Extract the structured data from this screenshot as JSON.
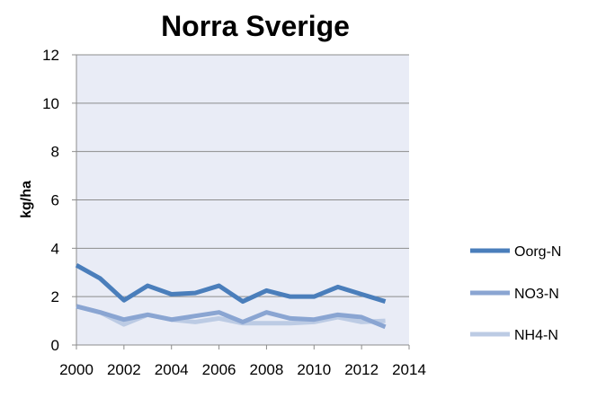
{
  "chart_data": {
    "type": "line",
    "title": "Norra Sverige",
    "xlabel": "",
    "ylabel": "kg/ha",
    "xlim": [
      2000,
      2014
    ],
    "ylim": [
      0,
      12
    ],
    "x_ticks": [
      2000,
      2002,
      2004,
      2006,
      2008,
      2010,
      2012,
      2014
    ],
    "y_ticks": [
      0,
      2,
      4,
      6,
      8,
      10,
      12
    ],
    "grid": "horizontal",
    "legend": "right",
    "plot_background": "#e9ecf6",
    "x": [
      2000,
      2001,
      2002,
      2003,
      2004,
      2005,
      2006,
      2007,
      2008,
      2009,
      2010,
      2011,
      2012,
      2013
    ],
    "series": [
      {
        "name": "Oorg-N",
        "color": "#4a7ebb",
        "values": [
          3.3,
          2.75,
          1.85,
          2.45,
          2.1,
          2.15,
          2.45,
          1.8,
          2.25,
          2.0,
          2.0,
          2.4,
          2.1,
          1.8
        ]
      },
      {
        "name": "NO3-N",
        "color": "#8aa5d2",
        "values": [
          1.6,
          1.35,
          1.05,
          1.25,
          1.05,
          1.2,
          1.35,
          0.95,
          1.35,
          1.1,
          1.05,
          1.25,
          1.15,
          0.75
        ]
      },
      {
        "name": "NH4-N",
        "color": "#bccbe4",
        "values": [
          1.6,
          1.35,
          0.85,
          1.25,
          1.05,
          0.95,
          1.1,
          0.9,
          0.9,
          0.9,
          0.95,
          1.15,
          0.95,
          1.0
        ]
      }
    ]
  }
}
